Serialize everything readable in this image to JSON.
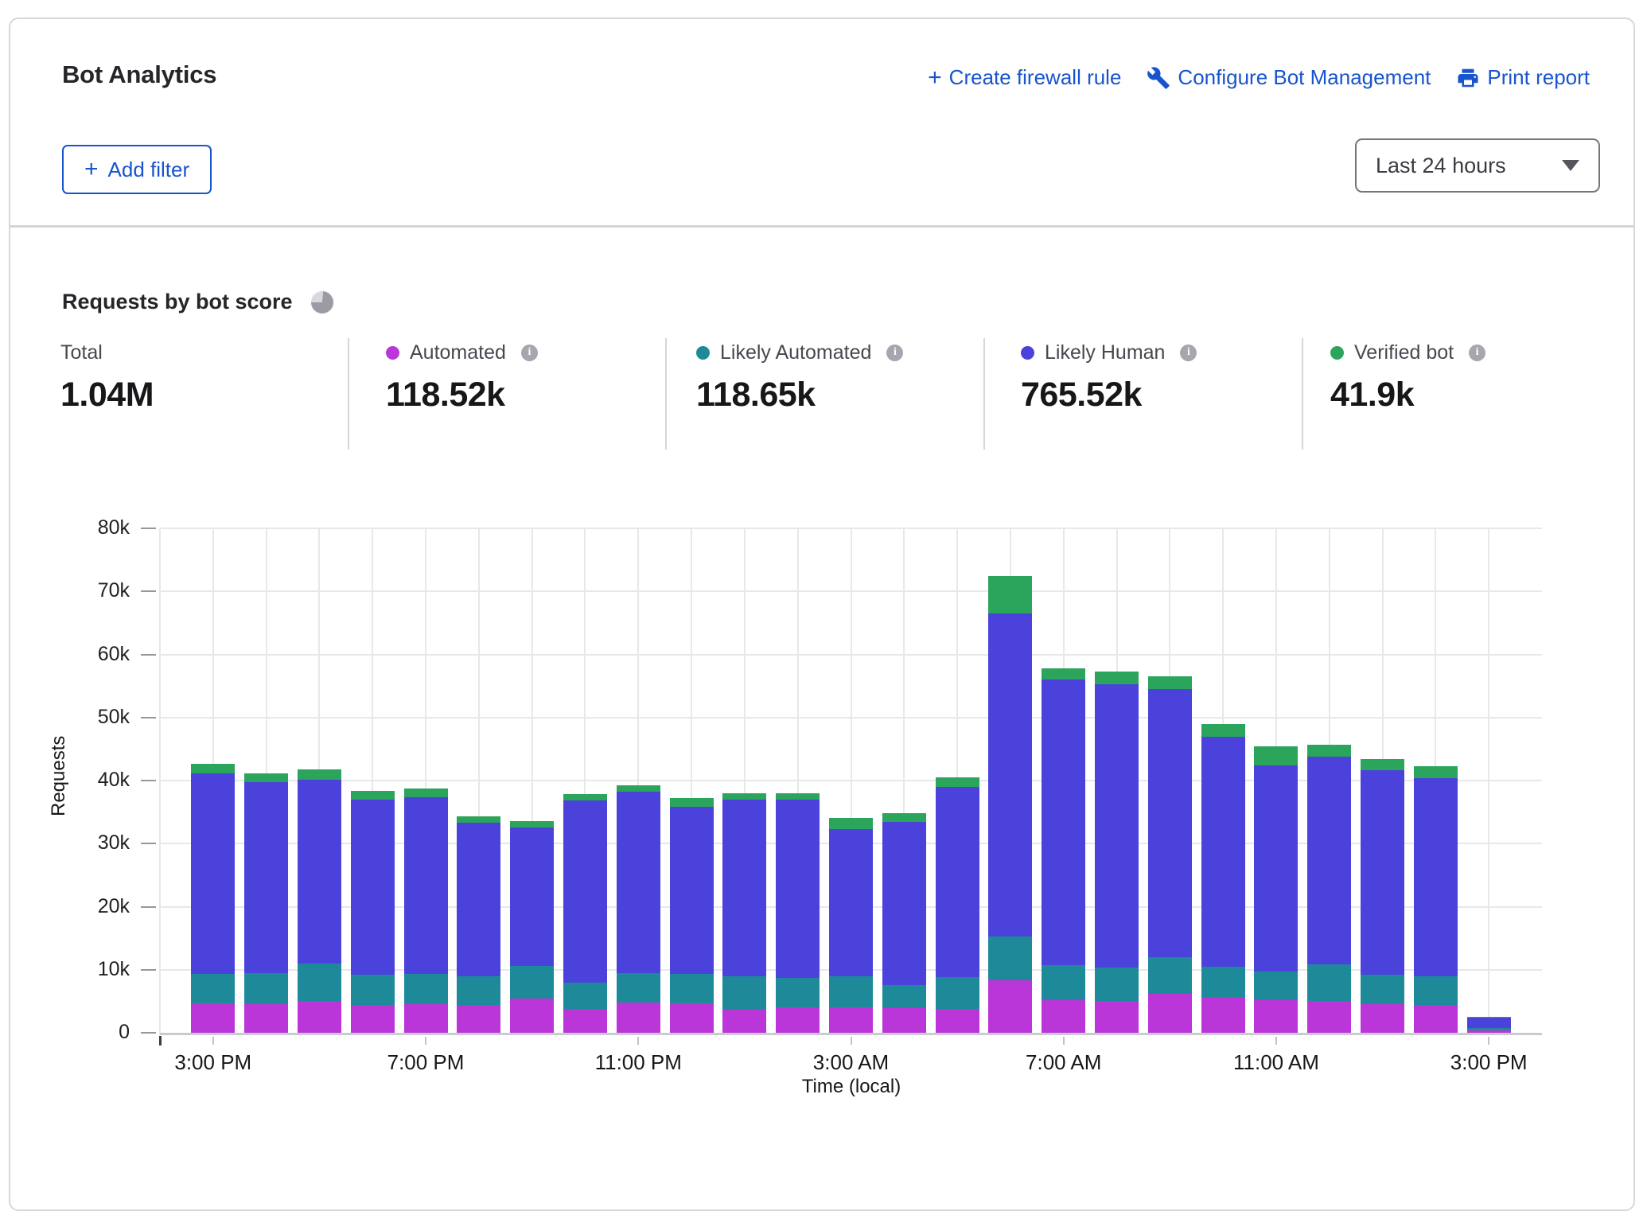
{
  "header": {
    "title": "Bot Analytics",
    "actions": [
      {
        "label": "Create firewall rule",
        "icon": "plus-icon"
      },
      {
        "label": "Configure Bot Management",
        "icon": "wrench-icon"
      },
      {
        "label": "Print report",
        "icon": "printer-icon"
      }
    ],
    "add_filter_label": "Add filter",
    "time_range_value": "Last 24 hours"
  },
  "section": {
    "title": "Requests by bot score"
  },
  "colors": {
    "link_blue": "#1754ce",
    "automated": "#bb36d8",
    "likely_automated": "#1e8a99",
    "likely_human": "#4a42db",
    "verified_bot": "#2ba55c"
  },
  "stats": [
    {
      "label": "Total",
      "value": "1.04M",
      "color": null,
      "has_info": false
    },
    {
      "label": "Automated",
      "value": "118.52k",
      "color": "#bb36d8",
      "has_info": true
    },
    {
      "label": "Likely Automated",
      "value": "118.65k",
      "color": "#1e8a99",
      "has_info": true
    },
    {
      "label": "Likely Human",
      "value": "765.52k",
      "color": "#4a42db",
      "has_info": true
    },
    {
      "label": "Verified bot",
      "value": "41.9k",
      "color": "#2ba55c",
      "has_info": true
    }
  ],
  "chart_data": {
    "type": "bar",
    "stacked": true,
    "title": "Requests by bot score",
    "xlabel": "Time (local)",
    "ylabel": "Requests",
    "ylim": [
      0,
      80000
    ],
    "grid": true,
    "x": [
      "3:00 PM",
      "4:00 PM",
      "5:00 PM",
      "6:00 PM",
      "7:00 PM",
      "8:00 PM",
      "9:00 PM",
      "10:00 PM",
      "11:00 PM",
      "12:00 AM",
      "1:00 AM",
      "2:00 AM",
      "3:00 AM",
      "4:00 AM",
      "5:00 AM",
      "6:00 AM",
      "7:00 AM",
      "8:00 AM",
      "9:00 AM",
      "10:00 AM",
      "11:00 AM",
      "12:00 PM",
      "1:00 PM",
      "2:00 PM",
      "3:00 PM"
    ],
    "series": [
      {
        "name": "Automated",
        "color": "#bb36d8",
        "values": [
          4700,
          4600,
          5000,
          4400,
          4600,
          4400,
          5400,
          3800,
          4800,
          4700,
          3600,
          4000,
          4000,
          3900,
          3800,
          8300,
          5200,
          5100,
          6200,
          5600,
          5200,
          5100,
          4500,
          4400,
          400
        ]
      },
      {
        "name": "Likely Automated",
        "color": "#1e8a99",
        "values": [
          4600,
          4900,
          6000,
          4800,
          4700,
          4600,
          5200,
          4200,
          4700,
          4700,
          5300,
          4700,
          4900,
          3700,
          5000,
          7000,
          5500,
          5200,
          5800,
          4900,
          4500,
          5800,
          4700,
          4500,
          400
        ]
      },
      {
        "name": "Likely Human",
        "color": "#4a42db",
        "values": [
          31900,
          30300,
          29100,
          27800,
          28000,
          24300,
          22000,
          28800,
          28700,
          26500,
          28100,
          28300,
          23400,
          25800,
          30200,
          51200,
          45300,
          45000,
          42500,
          36400,
          32700,
          32900,
          32400,
          31500,
          1600
        ]
      },
      {
        "name": "Verified bot",
        "color": "#2ba55c",
        "values": [
          1400,
          1400,
          1700,
          1400,
          1500,
          1000,
          1000,
          1000,
          1000,
          1300,
          1000,
          1000,
          1800,
          1400,
          1500,
          5900,
          1800,
          2000,
          2000,
          2000,
          3000,
          1900,
          1800,
          1900,
          100
        ]
      }
    ],
    "ytick_labels": [
      "0",
      "10k",
      "20k",
      "30k",
      "40k",
      "50k",
      "60k",
      "70k",
      "80k"
    ],
    "xtick_labels": [
      "3:00 PM",
      "7:00 PM",
      "11:00 PM",
      "3:00 AM",
      "7:00 AM",
      "11:00 AM",
      "3:00 PM"
    ],
    "xtick_every": 4,
    "legend_position": "top"
  }
}
